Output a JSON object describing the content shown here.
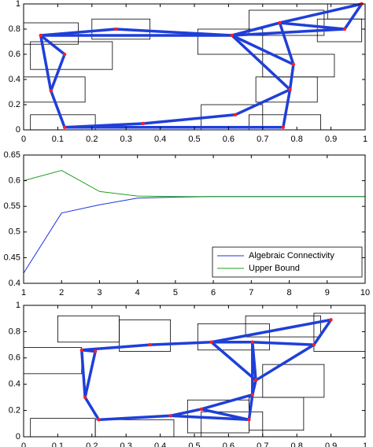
{
  "chart_data": [
    {
      "type": "network",
      "xlim": [
        0,
        1
      ],
      "ylim": [
        0,
        1
      ],
      "xticks": [
        0,
        0.1,
        0.2,
        0.3,
        0.4,
        0.5,
        0.6,
        0.7,
        0.8,
        0.9,
        1
      ],
      "yticks": [
        0,
        0.2,
        0.4,
        0.6,
        0.8,
        1
      ],
      "color": "#1f3fd8",
      "node_color": "#ff2020",
      "x": [
        0.05,
        0.27,
        0.12,
        0.08,
        0.12,
        0.35,
        0.62,
        0.76,
        0.78,
        0.79,
        0.61,
        0.75,
        0.94,
        0.99
      ],
      "y": [
        0.75,
        0.8,
        0.6,
        0.31,
        0.02,
        0.05,
        0.12,
        0.02,
        0.32,
        0.52,
        0.75,
        0.85,
        0.8,
        1.0
      ],
      "edges": [
        [
          0,
          1
        ],
        [
          1,
          10
        ],
        [
          0,
          2
        ],
        [
          0,
          3
        ],
        [
          2,
          3
        ],
        [
          3,
          4
        ],
        [
          4,
          5
        ],
        [
          5,
          6
        ],
        [
          4,
          7
        ],
        [
          6,
          8
        ],
        [
          7,
          8
        ],
        [
          8,
          9
        ],
        [
          9,
          10
        ],
        [
          9,
          11
        ],
        [
          10,
          11
        ],
        [
          10,
          12
        ],
        [
          11,
          12
        ],
        [
          12,
          13
        ],
        [
          11,
          13
        ],
        [
          0,
          10
        ],
        [
          10,
          8
        ]
      ],
      "boxes": [
        [
          0.0,
          0.68,
          0.16,
          0.85
        ],
        [
          0.2,
          0.72,
          0.37,
          0.88
        ],
        [
          0.02,
          0.48,
          0.26,
          0.7
        ],
        [
          0.0,
          0.22,
          0.18,
          0.42
        ],
        [
          0.02,
          0.0,
          0.21,
          0.12
        ],
        [
          0.52,
          0.0,
          0.7,
          0.2
        ],
        [
          0.66,
          0.0,
          0.87,
          0.12
        ],
        [
          0.68,
          0.22,
          0.86,
          0.42
        ],
        [
          0.7,
          0.42,
          0.91,
          0.6
        ],
        [
          0.51,
          0.6,
          0.7,
          0.8
        ],
        [
          0.66,
          0.75,
          0.88,
          0.95
        ],
        [
          0.86,
          0.7,
          0.99,
          0.88
        ],
        [
          0.89,
          0.88,
          1.0,
          1.0
        ]
      ]
    },
    {
      "type": "line",
      "xlim": [
        1,
        10
      ],
      "ylim": [
        0.4,
        0.65
      ],
      "xticks": [
        1,
        2,
        3,
        4,
        5,
        6,
        7,
        8,
        9,
        10
      ],
      "yticks": [
        0.4,
        0.45,
        0.5,
        0.55,
        0.6,
        0.65
      ],
      "x": [
        1,
        2,
        3,
        4,
        5,
        6,
        7,
        8,
        9,
        10
      ],
      "legend": "lower right",
      "series": [
        {
          "name": "Algebraic Connectivity",
          "color": "#2030e0",
          "values": [
            0.42,
            0.537,
            0.553,
            0.566,
            0.568,
            0.569,
            0.569,
            0.569,
            0.569,
            0.569
          ]
        },
        {
          "name": "Upper Bound",
          "color": "#20a020",
          "values": [
            0.6,
            0.62,
            0.579,
            0.57,
            0.569,
            0.569,
            0.569,
            0.569,
            0.569,
            0.569
          ]
        }
      ]
    },
    {
      "type": "network",
      "xlim": [
        0,
        1
      ],
      "ylim": [
        0,
        1
      ],
      "xticks": [
        0,
        0.1,
        0.2,
        0.3,
        0.4,
        0.5,
        0.6,
        0.7,
        0.8,
        0.9,
        1
      ],
      "yticks": [
        0,
        0.2,
        0.4,
        0.6,
        0.8,
        1
      ],
      "color": "#1f3fd8",
      "node_color": "#ff2020",
      "x": [
        0.17,
        0.21,
        0.37,
        0.55,
        0.67,
        0.85,
        0.9,
        0.68,
        0.67,
        0.66,
        0.52,
        0.43,
        0.22,
        0.18
      ],
      "y": [
        0.66,
        0.65,
        0.7,
        0.72,
        0.72,
        0.7,
        0.89,
        0.43,
        0.32,
        0.13,
        0.21,
        0.16,
        0.13,
        0.3
      ],
      "edges": [
        [
          0,
          2
        ],
        [
          2,
          3
        ],
        [
          3,
          4
        ],
        [
          4,
          5
        ],
        [
          5,
          6
        ],
        [
          3,
          6
        ],
        [
          0,
          13
        ],
        [
          1,
          13
        ],
        [
          0,
          1
        ],
        [
          13,
          12
        ],
        [
          12,
          11
        ],
        [
          11,
          10
        ],
        [
          10,
          9
        ],
        [
          9,
          8
        ],
        [
          8,
          7
        ],
        [
          7,
          5
        ],
        [
          7,
          3
        ],
        [
          7,
          4
        ],
        [
          4,
          8
        ],
        [
          11,
          9
        ],
        [
          10,
          8
        ]
      ],
      "boxes": [
        [
          0.0,
          0.48,
          0.17,
          0.68
        ],
        [
          0.02,
          0.0,
          0.21,
          0.14
        ],
        [
          0.1,
          0.72,
          0.28,
          0.92
        ],
        [
          0.21,
          0.0,
          0.44,
          0.13
        ],
        [
          0.28,
          0.65,
          0.43,
          0.89
        ],
        [
          0.51,
          0.66,
          0.72,
          0.86
        ],
        [
          0.65,
          0.76,
          0.87,
          0.92
        ],
        [
          0.85,
          0.65,
          1.0,
          0.94
        ],
        [
          0.7,
          0.3,
          0.88,
          0.55
        ],
        [
          0.66,
          0.05,
          0.82,
          0.3
        ],
        [
          0.52,
          0.0,
          0.7,
          0.19
        ],
        [
          0.48,
          0.03,
          0.66,
          0.28
        ]
      ]
    }
  ]
}
